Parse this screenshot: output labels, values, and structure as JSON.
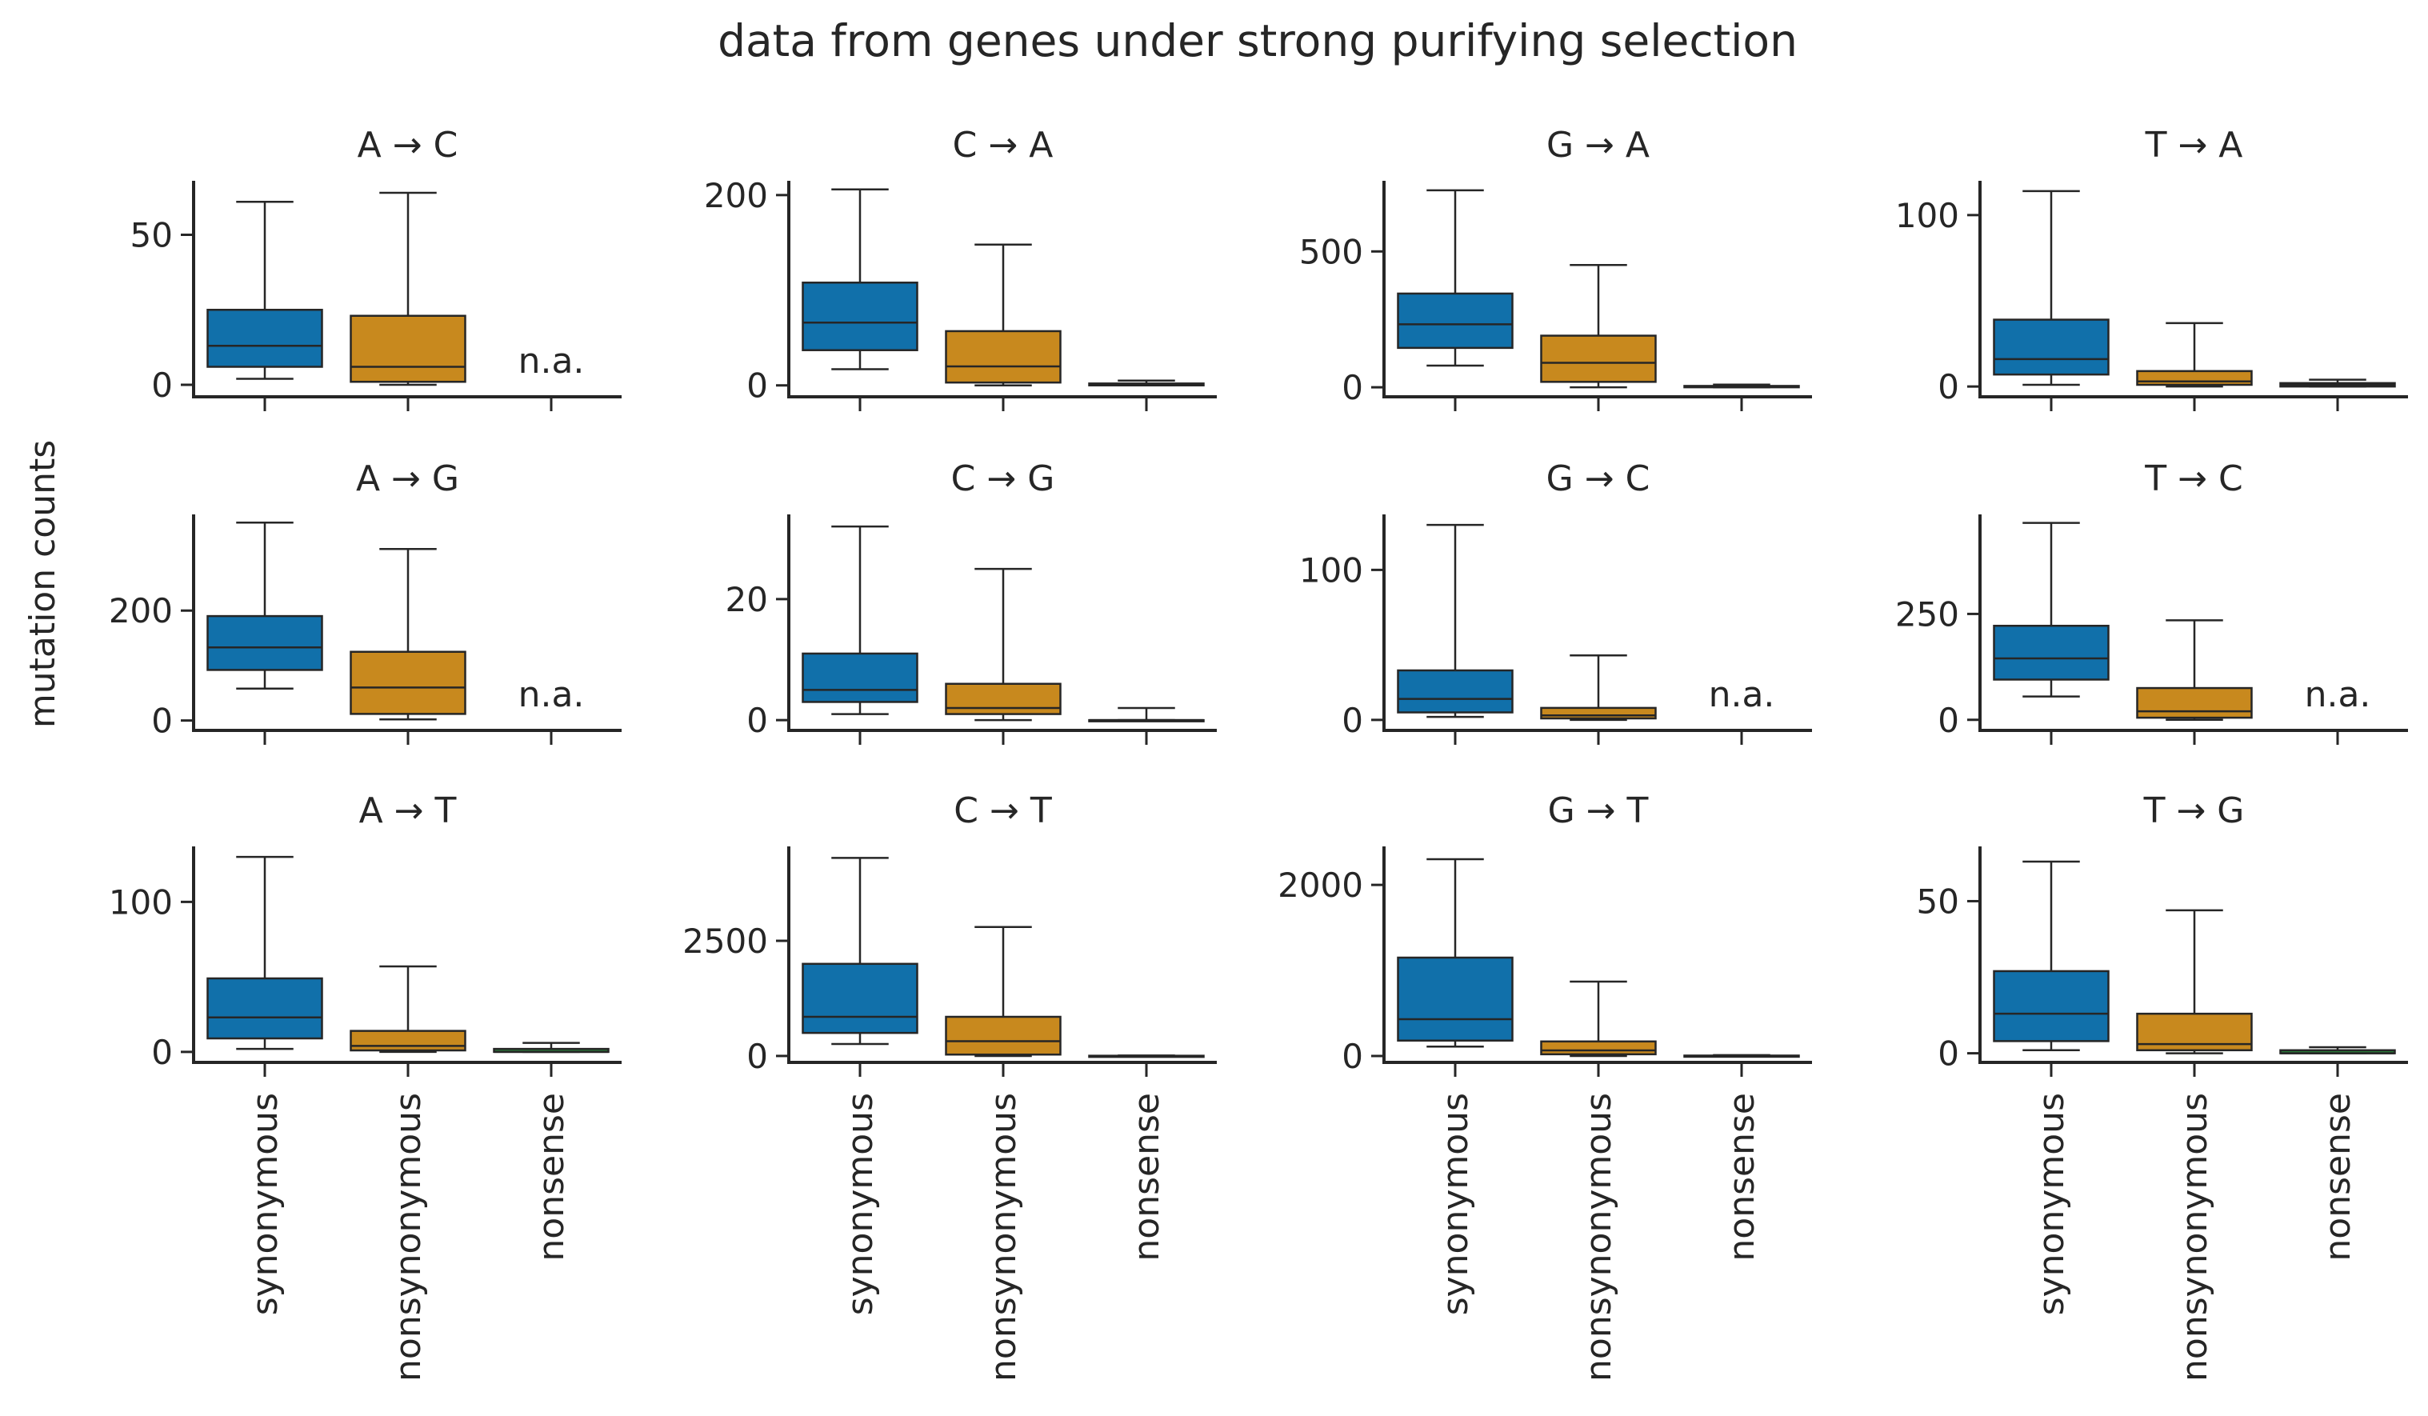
{
  "title": "data from genes under strong purifying selection",
  "ylabel": "mutation counts",
  "categories": [
    "synonymous",
    "nonsynonymous",
    "nonsense"
  ],
  "na_label": "n.a.",
  "colors": {
    "synonymous": "#1170aa",
    "nonsynonymous": "#c8891e",
    "nonsense": "#2a7d3a",
    "axis": "#262626"
  },
  "chart_data": [
    {
      "type": "box",
      "title": "A → C",
      "ylim": [
        -4,
        68
      ],
      "yticks": [
        0,
        50
      ],
      "boxes": [
        {
          "category": "synonymous",
          "whislo": 2,
          "q1": 6,
          "med": 13,
          "q3": 25,
          "whishi": 61
        },
        {
          "category": "nonsynonymous",
          "whislo": 0,
          "q1": 1,
          "med": 6,
          "q3": 23,
          "whishi": 64
        },
        {
          "category": "nonsense",
          "na": true
        }
      ]
    },
    {
      "type": "box",
      "title": "C → A",
      "ylim": [
        -12,
        215
      ],
      "yticks": [
        0,
        200
      ],
      "boxes": [
        {
          "category": "synonymous",
          "whislo": 17,
          "q1": 37,
          "med": 66,
          "q3": 108,
          "whishi": 206
        },
        {
          "category": "nonsynonymous",
          "whislo": 0,
          "q1": 3,
          "med": 20,
          "q3": 57,
          "whishi": 148
        },
        {
          "category": "nonsense",
          "whislo": 0,
          "q1": 0,
          "med": 1,
          "q3": 2,
          "whishi": 5
        }
      ]
    },
    {
      "type": "box",
      "title": "G → A",
      "ylim": [
        -35,
        760
      ],
      "yticks": [
        0,
        500
      ],
      "boxes": [
        {
          "category": "synonymous",
          "whislo": 80,
          "q1": 145,
          "med": 232,
          "q3": 345,
          "whishi": 725
        },
        {
          "category": "nonsynonymous",
          "whislo": 0,
          "q1": 20,
          "med": 90,
          "q3": 190,
          "whishi": 450
        },
        {
          "category": "nonsense",
          "whislo": 0,
          "q1": 0,
          "med": 2,
          "q3": 5,
          "whishi": 10
        }
      ]
    },
    {
      "type": "box",
      "title": "T → A",
      "ylim": [
        -6,
        120
      ],
      "yticks": [
        0,
        100
      ],
      "boxes": [
        {
          "category": "synonymous",
          "whislo": 1,
          "q1": 7,
          "med": 16,
          "q3": 39,
          "whishi": 114
        },
        {
          "category": "nonsynonymous",
          "whislo": 0,
          "q1": 1,
          "med": 3,
          "q3": 9,
          "whishi": 37
        },
        {
          "category": "nonsense",
          "whislo": 0,
          "q1": 0,
          "med": 1,
          "q3": 2,
          "whishi": 4
        }
      ]
    },
    {
      "type": "box",
      "title": "A → G",
      "ylim": [
        -18,
        375
      ],
      "yticks": [
        0,
        200
      ],
      "boxes": [
        {
          "category": "synonymous",
          "whislo": 58,
          "q1": 92,
          "med": 133,
          "q3": 190,
          "whishi": 360
        },
        {
          "category": "nonsynonymous",
          "whislo": 2,
          "q1": 12,
          "med": 60,
          "q3": 125,
          "whishi": 312
        },
        {
          "category": "nonsense",
          "na": true
        }
      ]
    },
    {
      "type": "box",
      "title": "C → G",
      "ylim": [
        -1.7,
        34
      ],
      "yticks": [
        0,
        20
      ],
      "boxes": [
        {
          "category": "synonymous",
          "whislo": 1,
          "q1": 3,
          "med": 5,
          "q3": 11,
          "whishi": 32
        },
        {
          "category": "nonsynonymous",
          "whislo": 0,
          "q1": 1,
          "med": 2,
          "q3": 6,
          "whishi": 25
        },
        {
          "category": "nonsense",
          "whislo": 0,
          "q1": 0,
          "med": 0,
          "q3": 0,
          "whishi": 2
        }
      ]
    },
    {
      "type": "box",
      "title": "G → C",
      "ylim": [
        -7,
        137
      ],
      "yticks": [
        0,
        100
      ],
      "boxes": [
        {
          "category": "synonymous",
          "whislo": 2,
          "q1": 5,
          "med": 14,
          "q3": 33,
          "whishi": 130
        },
        {
          "category": "nonsynonymous",
          "whislo": 0,
          "q1": 1,
          "med": 3,
          "q3": 8,
          "whishi": 43
        },
        {
          "category": "nonsense",
          "na": true
        }
      ]
    },
    {
      "type": "box",
      "title": "T → C",
      "ylim": [
        -25,
        485
      ],
      "yticks": [
        0,
        250
      ],
      "boxes": [
        {
          "category": "synonymous",
          "whislo": 55,
          "q1": 95,
          "med": 145,
          "q3": 222,
          "whishi": 465
        },
        {
          "category": "nonsynonymous",
          "whislo": 0,
          "q1": 5,
          "med": 20,
          "q3": 75,
          "whishi": 235
        },
        {
          "category": "nonsense",
          "na": true
        }
      ]
    },
    {
      "type": "box",
      "title": "A → T",
      "ylim": [
        -7,
        137
      ],
      "yticks": [
        0,
        100
      ],
      "boxes": [
        {
          "category": "synonymous",
          "whislo": 2,
          "q1": 9,
          "med": 23,
          "q3": 49,
          "whishi": 130
        },
        {
          "category": "nonsynonymous",
          "whislo": 0,
          "q1": 1,
          "med": 4,
          "q3": 14,
          "whishi": 57
        },
        {
          "category": "nonsense",
          "whislo": 0,
          "q1": 0,
          "med": 0,
          "q3": 2,
          "whishi": 6
        }
      ]
    },
    {
      "type": "box",
      "title": "C → T",
      "ylim": [
        -140,
        4550
      ],
      "yticks": [
        0,
        2500
      ],
      "boxes": [
        {
          "category": "synonymous",
          "whislo": 260,
          "q1": 500,
          "med": 850,
          "q3": 2000,
          "whishi": 4300
        },
        {
          "category": "nonsynonymous",
          "whislo": 0,
          "q1": 30,
          "med": 320,
          "q3": 850,
          "whishi": 2800
        },
        {
          "category": "nonsense",
          "whislo": 0,
          "q1": 0,
          "med": 0,
          "q3": 5,
          "whishi": 10
        }
      ]
    },
    {
      "type": "box",
      "title": "G → T",
      "ylim": [
        -75,
        2450
      ],
      "yticks": [
        0,
        2000
      ],
      "boxes": [
        {
          "category": "synonymous",
          "whislo": 110,
          "q1": 180,
          "med": 430,
          "q3": 1150,
          "whishi": 2300
        },
        {
          "category": "nonsynonymous",
          "whislo": 0,
          "q1": 20,
          "med": 65,
          "q3": 170,
          "whishi": 870
        },
        {
          "category": "nonsense",
          "whislo": 0,
          "q1": 0,
          "med": 2,
          "q3": 5,
          "whishi": 10
        }
      ]
    },
    {
      "type": "box",
      "title": "T → G",
      "ylim": [
        -3,
        68
      ],
      "yticks": [
        0,
        50
      ],
      "boxes": [
        {
          "category": "synonymous",
          "whislo": 1,
          "q1": 4,
          "med": 13,
          "q3": 27,
          "whishi": 63
        },
        {
          "category": "nonsynonymous",
          "whislo": 0,
          "q1": 1,
          "med": 3,
          "q3": 13,
          "whishi": 47
        },
        {
          "category": "nonsense",
          "whislo": 0,
          "q1": 0,
          "med": 0,
          "q3": 1,
          "whishi": 2
        }
      ]
    }
  ]
}
